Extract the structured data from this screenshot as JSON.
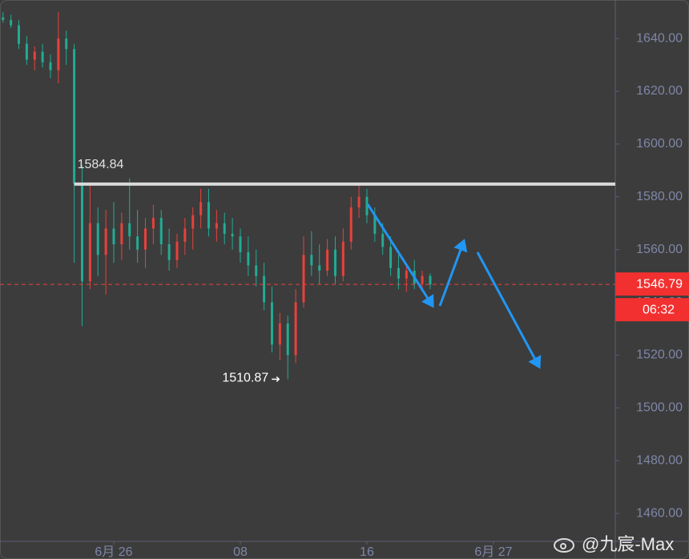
{
  "chart_data": {
    "type": "candlestick",
    "x": [
      -7,
      -6.5,
      -6,
      -5.5,
      -5,
      -4.5,
      -4,
      -3.5,
      -3,
      -2.5,
      -2,
      -1.5,
      -1,
      -0.5,
      0,
      0.5,
      1,
      1.5,
      2,
      2.5,
      3,
      3.5,
      4,
      4.5,
      5,
      5.5,
      6,
      6.5,
      7,
      7.5,
      8,
      8.5,
      9,
      9.5,
      10,
      10.5,
      11,
      11.5,
      12,
      12.5,
      13,
      13.5,
      14,
      14.5,
      15,
      15.5,
      16,
      16.5,
      17,
      17.5,
      18,
      18.5,
      19,
      19.5,
      20
    ],
    "open": [
      1648,
      1647,
      1645,
      1638,
      1632,
      1635,
      1631,
      1628,
      1640,
      1636,
      1585,
      1548,
      1570,
      1558,
      1568,
      1562,
      1570,
      1565,
      1560,
      1568,
      1572,
      1562,
      1556,
      1563,
      1568,
      1573,
      1578,
      1568,
      1570,
      1566,
      1565,
      1559,
      1554,
      1550,
      1540,
      1524,
      1532,
      1520,
      1540,
      1558,
      1554,
      1552,
      1560,
      1550,
      1563,
      1576,
      1580,
      1573,
      1566,
      1561,
      1553,
      1549,
      1552,
      1547,
      1550
    ],
    "high": [
      1650,
      1649,
      1647,
      1641,
      1637,
      1638,
      1634,
      1650,
      1643,
      1638,
      1592,
      1585,
      1576,
      1575,
      1578,
      1574,
      1587,
      1575,
      1572,
      1577,
      1575,
      1568,
      1566,
      1572,
      1576,
      1583,
      1583,
      1575,
      1574,
      1572,
      1568,
      1565,
      1560,
      1555,
      1546,
      1536,
      1535,
      1545,
      1565,
      1567,
      1562,
      1564,
      1565,
      1568,
      1580,
      1585,
      1583,
      1576,
      1570,
      1565,
      1558,
      1554,
      1556,
      1552,
      1551
    ],
    "low": [
      1646,
      1644,
      1636,
      1630,
      1628,
      1629,
      1625,
      1623,
      1630,
      1555,
      1531,
      1545,
      1550,
      1543,
      1555,
      1556,
      1560,
      1555,
      1553,
      1562,
      1558,
      1552,
      1553,
      1558,
      1560,
      1568,
      1565,
      1563,
      1562,
      1560,
      1555,
      1550,
      1546,
      1537,
      1521,
      1518,
      1510.87,
      1517,
      1538,
      1550,
      1547,
      1550,
      1547,
      1548,
      1560,
      1572,
      1570,
      1563,
      1558,
      1550,
      1545,
      1544,
      1545,
      1544,
      1545
    ],
    "close": [
      1647,
      1645,
      1638,
      1632,
      1635,
      1631,
      1628,
      1640,
      1636,
      1585,
      1548,
      1570,
      1558,
      1568,
      1562,
      1570,
      1565,
      1560,
      1568,
      1572,
      1562,
      1556,
      1563,
      1568,
      1573,
      1578,
      1568,
      1570,
      1566,
      1565,
      1559,
      1554,
      1550,
      1540,
      1524,
      1532,
      1520,
      1540,
      1558,
      1554,
      1552,
      1560,
      1550,
      1563,
      1576,
      1580,
      1573,
      1566,
      1561,
      1553,
      1549,
      1552,
      1547,
      1550,
      1546.79
    ],
    "up_color": "#e8413b",
    "down_color": "#22ab94",
    "xlim": [
      -7.19,
      31.7
    ],
    "xticks": [
      {
        "value": 0,
        "label": "6月 26"
      },
      {
        "value": 8,
        "label": "08"
      },
      {
        "value": 16,
        "label": "16"
      },
      {
        "value": 24,
        "label": "6月 27"
      }
    ],
    "ylim": [
      1449.4,
      1654.6
    ],
    "yticks": [
      {
        "value": 1460,
        "label": "1460.00"
      },
      {
        "value": 1480,
        "label": "1480.00"
      },
      {
        "value": 1500,
        "label": "1500.00"
      },
      {
        "value": 1520,
        "label": "1520.00"
      },
      {
        "value": 1540,
        "label": "1540.00"
      },
      {
        "value": 1560,
        "label": "1560.00"
      },
      {
        "value": 1580,
        "label": "1580.00"
      },
      {
        "value": 1600,
        "label": "1600.00"
      },
      {
        "value": 1620,
        "label": "1620.00"
      },
      {
        "value": 1640,
        "label": "1640.00"
      }
    ],
    "grid": false,
    "resistance": 1584.84,
    "low_label": 1510.87,
    "last_price": 1546.79,
    "countdown": "06:32"
  },
  "watermark": "@九宸-Max"
}
